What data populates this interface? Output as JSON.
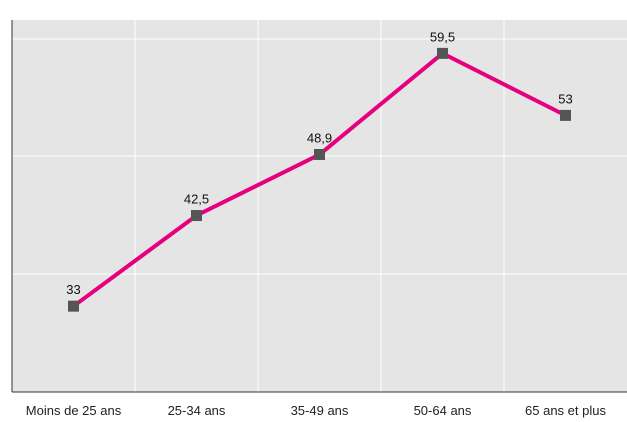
{
  "chart_data": {
    "type": "line",
    "categories": [
      "Moins de 25 ans",
      "25-34 ans",
      "35-49 ans",
      "50-64 ans",
      "65 ans et plus"
    ],
    "series": [
      {
        "values": [
          33,
          42.5,
          48.9,
          59.5,
          53
        ],
        "data_labels": [
          "33",
          "42,5",
          "48,9",
          "59,5",
          "53"
        ]
      }
    ],
    "title": "",
    "xlabel": "",
    "ylabel": "",
    "ylim": [
      24,
      63
    ],
    "yticks_shown": false,
    "grid": {
      "horizontal": true,
      "vertical": true
    },
    "legend": "none",
    "colors": {
      "plot_background": "#e5e5e5",
      "grid": "#ffffff",
      "axis": "#333333",
      "line": "#e6007e",
      "marker": "#555555"
    }
  }
}
